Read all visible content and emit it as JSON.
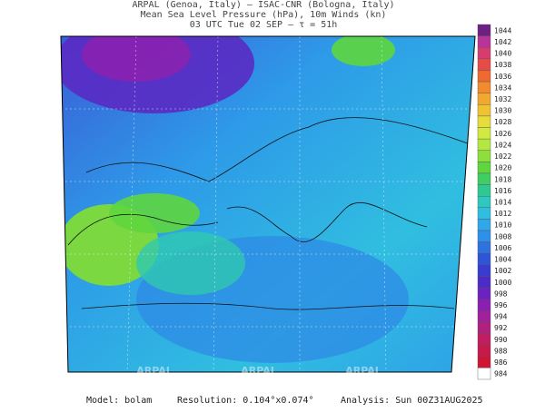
{
  "header": {
    "line1": "ARPAL (Genoa, Italy)  —  ISAC-CNR (Bologna, Italy)",
    "line2": "Mean Sea Level Pressure (hPa), 10m Winds (kn)",
    "line3": "03 UTC Tue 02 SEP  —  τ = 51h"
  },
  "colorbar": {
    "levels": [
      1044,
      1042,
      1040,
      1038,
      1036,
      1034,
      1032,
      1030,
      1028,
      1026,
      1024,
      1022,
      1020,
      1018,
      1016,
      1014,
      1012,
      1010,
      1008,
      1006,
      1004,
      1002,
      1000,
      998,
      996,
      994,
      992,
      990,
      988,
      986,
      984
    ],
    "colors": [
      "#6e1f82",
      "#b8349a",
      "#d63c70",
      "#e84a48",
      "#ef6a30",
      "#f28a2e",
      "#f2a82e",
      "#f0c431",
      "#e6dc3c",
      "#d2ea40",
      "#b2e840",
      "#8ede3e",
      "#5ed63e",
      "#3ece62",
      "#30c892",
      "#2ec8c0",
      "#30bee0",
      "#2ea8ea",
      "#2e90e8",
      "#2e72e0",
      "#2e54d8",
      "#3a3cd0",
      "#4c2cc8",
      "#6a22c0",
      "#8a20b0",
      "#a0209e",
      "#b2207e",
      "#c01e62",
      "#c81a4a",
      "#d01434",
      "#ffffff"
    ]
  },
  "watermarks": [
    "ARPAL",
    "ARPAL",
    "ARPAL"
  ],
  "footer": {
    "model": "Model: bolam",
    "resolution": "Resolution: 0.104°x0.074°",
    "analysis": "Analysis: Sun 00Z31AUG2025"
  }
}
